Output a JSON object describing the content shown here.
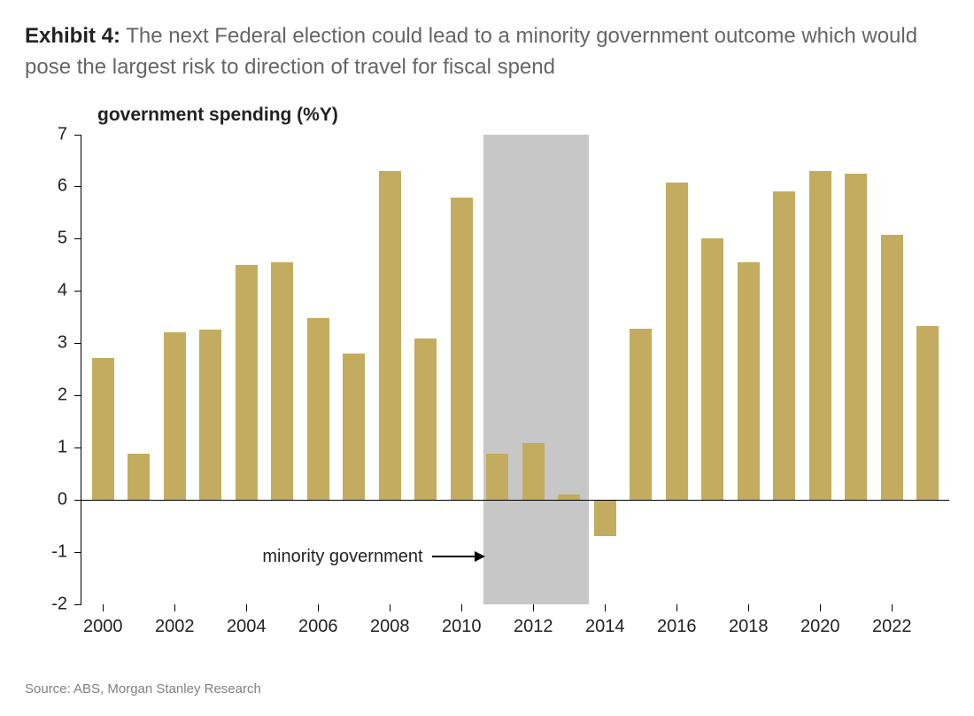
{
  "exhibit_label": "Exhibit 4:",
  "title": "The next Federal election could lead to a minority government outcome which would pose the largest risk to direction of travel for fiscal spend",
  "source": "Source: ABS, Morgan Stanley Research",
  "chart": {
    "type": "bar",
    "series_title": "government spending (%Y)",
    "title_fontsize": 21,
    "label_fontsize": 20,
    "background_color": "#ffffff",
    "bar_color": "#c3ac5f",
    "band_color": "#c7c7c7",
    "axis_color": "#000000",
    "bar_width": 0.62,
    "ylim": [
      -2,
      7
    ],
    "ytick_step": 1,
    "yticks": [
      -2,
      -1,
      0,
      1,
      2,
      3,
      4,
      5,
      6,
      7
    ],
    "xlim": [
      1999.4,
      2023.6
    ],
    "xticks": [
      2000,
      2002,
      2004,
      2006,
      2008,
      2010,
      2012,
      2014,
      2016,
      2018,
      2020,
      2022
    ],
    "years": [
      2000,
      2001,
      2002,
      2003,
      2004,
      2005,
      2006,
      2007,
      2008,
      2009,
      2010,
      2011,
      2012,
      2013,
      2014,
      2015,
      2016,
      2017,
      2018,
      2019,
      2020,
      2021,
      2022,
      2023
    ],
    "values": [
      2.72,
      0.88,
      3.2,
      3.25,
      4.5,
      4.55,
      3.48,
      2.8,
      6.3,
      3.08,
      5.78,
      0.88,
      1.08,
      0.1,
      -0.7,
      3.28,
      6.08,
      5.0,
      4.55,
      5.9,
      6.3,
      6.25,
      5.08,
      3.32
    ],
    "highlight_band": {
      "x_start": 2010.6,
      "x_end": 2013.55
    },
    "annotation": {
      "text": "minority government",
      "y": -1.1,
      "x_text_end": 2009.7,
      "arrow_to_x": 2010.6
    }
  }
}
